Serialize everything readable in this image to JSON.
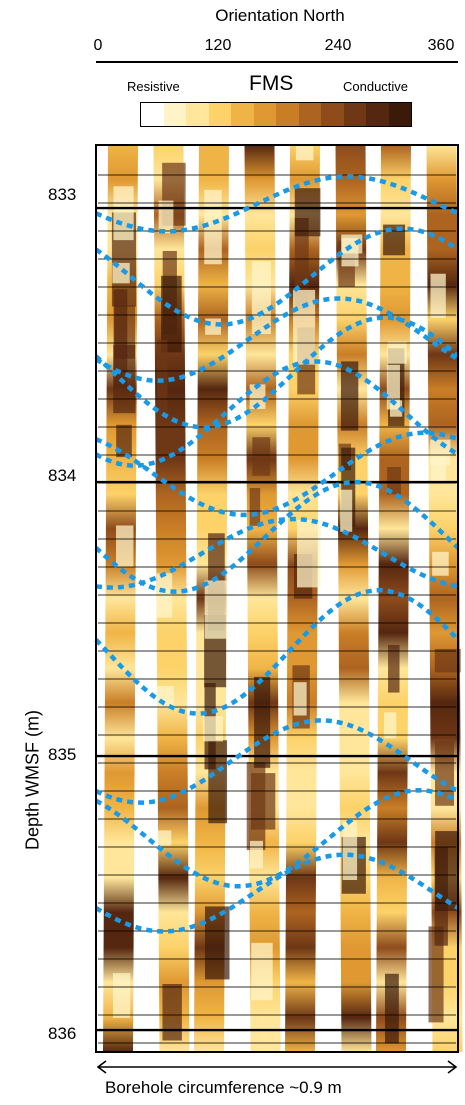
{
  "chart_data": {
    "type": "image-log",
    "top_axis": {
      "title": "Orientation North",
      "ticks": [
        0,
        120,
        240,
        360
      ],
      "range": [
        0,
        360
      ]
    },
    "legend": {
      "title": "FMS",
      "left_label": "Resistive",
      "right_label": "Conductive",
      "colors": [
        "#ffffff",
        "#fff4c8",
        "#ffe69a",
        "#fcd269",
        "#f0b446",
        "#df9832",
        "#c97e26",
        "#ad6420",
        "#8e4c1c",
        "#6e3716",
        "#552710",
        "#3c1a0a"
      ]
    },
    "y_axis": {
      "title": "Depth WMSF (m)",
      "ticks": [
        833,
        834,
        835,
        836
      ],
      "range": [
        832.77,
        836.08
      ]
    },
    "bottom_label": "Borehole circumference ~0.9 m",
    "overlay_color": "#1a9ae6",
    "sinusoids": [
      {
        "amp": 0.2,
        "mid": 832.985,
        "phase": 0.35
      },
      {
        "amp": 0.35,
        "mid": 833.25,
        "phase": -0.6
      },
      {
        "amp": 0.3,
        "mid": 833.48,
        "phase": 0.5
      },
      {
        "amp": 0.4,
        "mid": 833.6,
        "phase": -0.3
      },
      {
        "amp": 0.38,
        "mid": 833.75,
        "phase": 0.9
      },
      {
        "amp": 0.3,
        "mid": 833.97,
        "phase": -1.0
      },
      {
        "amp": 0.4,
        "mid": 834.2,
        "phase": 0.2
      },
      {
        "amp": 0.25,
        "mid": 834.26,
        "phase": 1.3
      },
      {
        "amp": 0.45,
        "mid": 834.62,
        "phase": -0.2
      },
      {
        "amp": 0.3,
        "mid": 835.02,
        "phase": 0.8
      },
      {
        "amp": 0.35,
        "mid": 835.3,
        "phase": -0.9
      },
      {
        "amp": 0.28,
        "mid": 835.5,
        "phase": 0.4
      }
    ]
  }
}
